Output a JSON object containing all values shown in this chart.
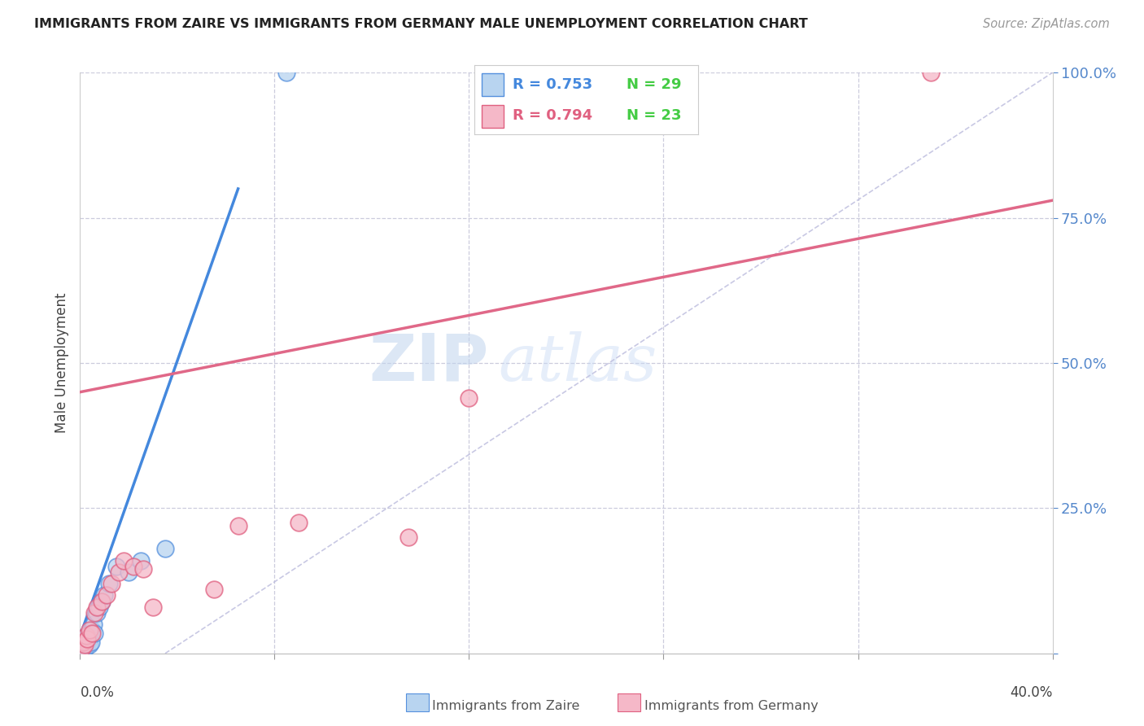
{
  "title": "IMMIGRANTS FROM ZAIRE VS IMMIGRANTS FROM GERMANY MALE UNEMPLOYMENT CORRELATION CHART",
  "source": "Source: ZipAtlas.com",
  "ylabel": "Male Unemployment",
  "xlim": [
    0,
    40
  ],
  "ylim": [
    0,
    100
  ],
  "ytick_vals": [
    0,
    25,
    50,
    75,
    100
  ],
  "ytick_labels": [
    "",
    "25.0%",
    "50.0%",
    "75.0%",
    "100.0%"
  ],
  "zaire_color_fill": "#b8d4f0",
  "zaire_color_edge": "#5590dd",
  "germany_color_fill": "#f5b8c8",
  "germany_color_edge": "#e06080",
  "zaire_line_color": "#4488dd",
  "germany_line_color": "#e06888",
  "diag_color": "#bbbbdd",
  "grid_color": "#ccccdd",
  "watermark_color": "#c5d8f0",
  "zaire_x": [
    0.05,
    0.08,
    0.1,
    0.12,
    0.15,
    0.18,
    0.2,
    0.22,
    0.25,
    0.28,
    0.3,
    0.32,
    0.35,
    0.38,
    0.4,
    0.45,
    0.5,
    0.55,
    0.6,
    0.7,
    0.8,
    0.9,
    1.0,
    1.2,
    1.5,
    2.0,
    2.5,
    3.5,
    8.5
  ],
  "zaire_y": [
    0.5,
    1.0,
    1.5,
    1.0,
    2.0,
    1.5,
    2.5,
    1.0,
    3.0,
    2.0,
    1.5,
    3.0,
    2.5,
    1.5,
    3.5,
    2.0,
    4.0,
    5.0,
    3.5,
    7.0,
    8.0,
    9.0,
    10.0,
    12.0,
    15.0,
    14.0,
    16.0,
    18.0,
    100.0
  ],
  "germany_x": [
    0.08,
    0.12,
    0.18,
    0.25,
    0.3,
    0.4,
    0.5,
    0.6,
    0.7,
    0.9,
    1.1,
    1.3,
    1.6,
    1.8,
    2.2,
    2.6,
    3.0,
    5.5,
    6.5,
    9.0,
    13.5,
    16.0,
    35.0
  ],
  "germany_y": [
    1.0,
    2.0,
    1.5,
    3.0,
    2.5,
    4.0,
    3.5,
    7.0,
    8.0,
    9.0,
    10.0,
    12.0,
    14.0,
    16.0,
    15.0,
    14.5,
    8.0,
    11.0,
    22.0,
    22.5,
    20.0,
    44.0,
    100.0
  ],
  "zaire_reg_x0": 0.0,
  "zaire_reg_y0": 3.0,
  "zaire_reg_x1": 6.5,
  "zaire_reg_y1": 80.0,
  "germany_reg_x0": 0.0,
  "germany_reg_y0": 45.0,
  "germany_reg_x1": 40.0,
  "germany_reg_y1": 78.0,
  "diag_x0": 3.5,
  "diag_y0": 0.0,
  "diag_x1": 40.0,
  "diag_y1": 100.0,
  "legend_r_zaire": "R = 0.753",
  "legend_n_zaire": "N = 29",
  "legend_r_germany": "R = 0.794",
  "legend_n_germany": "N = 23"
}
